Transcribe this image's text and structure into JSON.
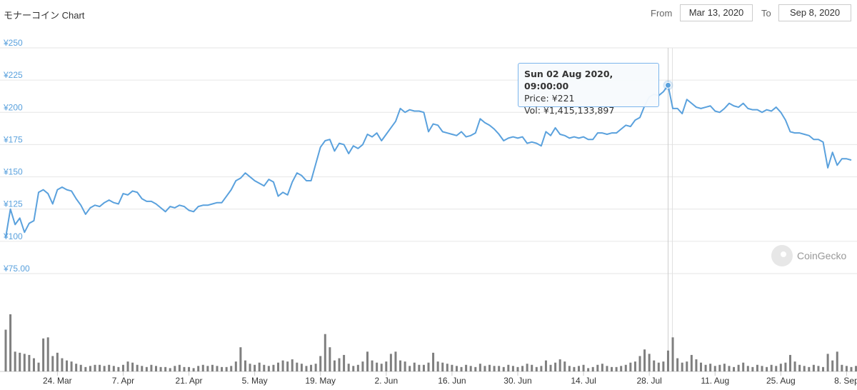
{
  "header": {
    "title": "モナーコイン Chart",
    "from_label": "From",
    "from_value": "Mar 13, 2020",
    "to_label": "To",
    "to_value": "Sep 8, 2020"
  },
  "tooltip": {
    "date": "Sun 02 Aug 2020, 09:00:00",
    "price_label": "Price:",
    "price_value": "¥221",
    "vol_label": "Vol:",
    "vol_value": "¥1,415,133,897"
  },
  "credit": "CoinGecko",
  "colors": {
    "line": "#5aa1dd",
    "volume": "#7f7f7f",
    "grid": "#e6e6e6"
  },
  "chart_data": {
    "type": "line",
    "ylim": [
      75,
      250
    ],
    "y_ticks": [
      "¥250",
      "¥225",
      "¥200",
      "¥175",
      "¥150",
      "¥125",
      "¥100",
      "¥75.00"
    ],
    "y_tick_values": [
      250,
      225,
      200,
      175,
      150,
      125,
      100,
      75
    ],
    "x_ticks": [
      "24. Mar",
      "7. Apr",
      "21. Apr",
      "5. May",
      "19. May",
      "2. Jun",
      "16. Jun",
      "30. Jun",
      "14. Jul",
      "28. Jul",
      "11. Aug",
      "25. Aug",
      "8. Sep"
    ],
    "x_tick_days": [
      11,
      25,
      39,
      53,
      67,
      81,
      95,
      109,
      123,
      137,
      151,
      165,
      179
    ],
    "x_start": "Mar 13, 2020",
    "series": [
      {
        "values": [
          103,
          125,
          113,
          118,
          107,
          114,
          116,
          138,
          140,
          137,
          129,
          140,
          142,
          140,
          139,
          133,
          128,
          121,
          126,
          128,
          127,
          130,
          132,
          130,
          129,
          137,
          136,
          139,
          138,
          133,
          131,
          131,
          129,
          126,
          123,
          127,
          126,
          128,
          127,
          124,
          123,
          127,
          128,
          128,
          129,
          130,
          130,
          135,
          140,
          147,
          149,
          153,
          150,
          147,
          145,
          143,
          148,
          146,
          135,
          138,
          136,
          146,
          153,
          151,
          147,
          147,
          160,
          173,
          178,
          179,
          170,
          176,
          175,
          168,
          174,
          172,
          175,
          183,
          181,
          184,
          178,
          183,
          188,
          193,
          203,
          200,
          202,
          201,
          201,
          200,
          185,
          191,
          190,
          185,
          184,
          183,
          182,
          185,
          181,
          182,
          184,
          195,
          192,
          190,
          187,
          183,
          178,
          180,
          181,
          180,
          181,
          176,
          177,
          176,
          174,
          185,
          182,
          188,
          183,
          182,
          180,
          181,
          180,
          181,
          179,
          179,
          184,
          184,
          183,
          184,
          184,
          187,
          190,
          189,
          194,
          196,
          205,
          212,
          214,
          213,
          216,
          221,
          203,
          203,
          199,
          210,
          207,
          204,
          203,
          204,
          205,
          201,
          200,
          203,
          207,
          205,
          204,
          207,
          203,
          202,
          202,
          200,
          202,
          201,
          204,
          200,
          194,
          185,
          184,
          184,
          183,
          182,
          179,
          179,
          177,
          157,
          169,
          159,
          164,
          164,
          163
        ]
      }
    ],
    "volume": [
      38,
      52,
      18,
      17,
      16,
      15,
      12,
      8,
      30,
      31,
      14,
      17,
      12,
      10,
      9,
      7,
      6,
      4,
      5,
      6,
      6,
      5,
      6,
      5,
      4,
      6,
      9,
      8,
      6,
      5,
      4,
      6,
      5,
      4,
      4,
      3,
      5,
      6,
      4,
      4,
      3,
      5,
      6,
      5,
      6,
      5,
      4,
      4,
      5,
      9,
      22,
      10,
      7,
      6,
      8,
      6,
      5,
      6,
      8,
      10,
      9,
      11,
      8,
      7,
      5,
      6,
      7,
      14,
      34,
      22,
      10,
      12,
      15,
      7,
      5,
      6,
      9,
      18,
      10,
      8,
      7,
      9,
      16,
      18,
      10,
      9,
      5,
      8,
      6,
      6,
      8,
      17,
      9,
      8,
      7,
      6,
      5,
      4,
      6,
      5,
      4,
      7,
      5,
      6,
      5,
      5,
      4,
      6,
      5,
      4,
      5,
      7,
      6,
      4,
      5,
      10,
      6,
      8,
      11,
      9,
      5,
      4,
      5,
      6,
      3,
      4,
      6,
      7,
      5,
      4,
      4,
      5,
      6,
      8,
      9,
      14,
      20,
      16,
      10,
      8,
      9,
      19,
      31,
      12,
      8,
      9,
      15,
      11,
      8,
      6,
      7,
      5,
      6,
      7,
      5,
      4,
      6,
      8,
      5,
      4,
      6,
      5,
      4,
      6,
      5,
      7,
      8,
      15,
      9,
      6,
      5,
      4,
      6,
      5,
      4,
      16,
      10,
      18,
      6,
      5,
      4,
      5
    ]
  }
}
